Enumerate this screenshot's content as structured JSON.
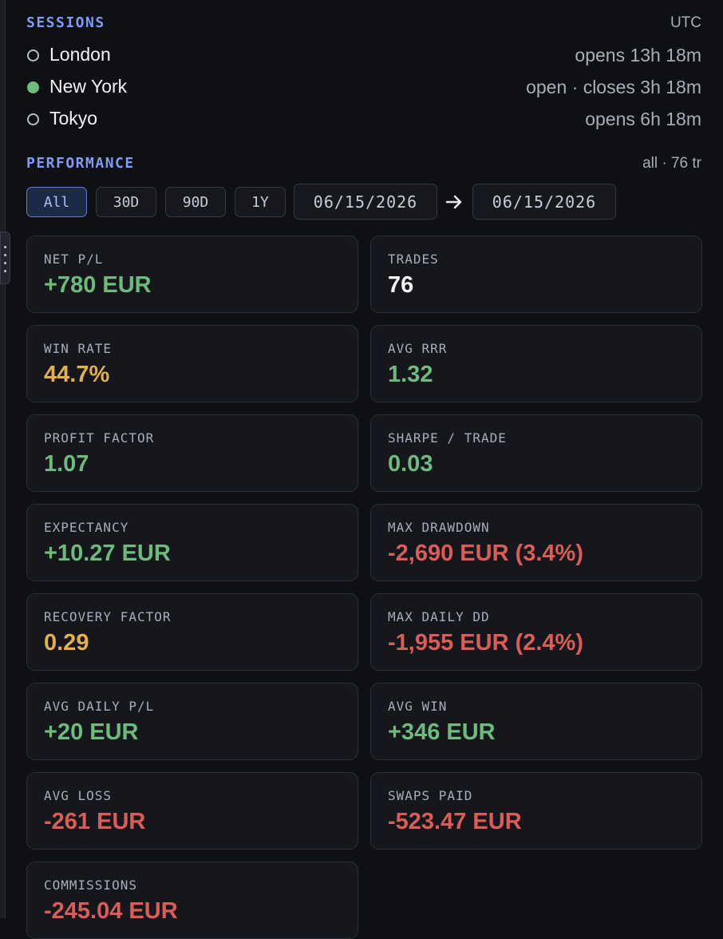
{
  "sessions": {
    "title": "SESSIONS",
    "timezone": "UTC",
    "items": [
      {
        "name": "London",
        "status": "opens 13h 18m",
        "open": false
      },
      {
        "name": "New York",
        "status": "open · closes 3h 18m",
        "open": true
      },
      {
        "name": "Tokyo",
        "status": "opens 6h 18m",
        "open": false
      }
    ]
  },
  "performance": {
    "title": "PERFORMANCE",
    "summary": "all · 76 tr",
    "filters": [
      "All",
      "30D",
      "90D",
      "1Y"
    ],
    "active_filter": 0,
    "date_from": "06/15/2026",
    "date_to": "06/15/2026",
    "cards": [
      {
        "label": "NET P/L",
        "value": "+780 EUR",
        "color": "#6dbb7d"
      },
      {
        "label": "TRADES",
        "value": "76",
        "color": "#f2f3f5"
      },
      {
        "label": "WIN RATE",
        "value": "44.7%",
        "color": "#e3b04b"
      },
      {
        "label": "AVG RRR",
        "value": "1.32",
        "color": "#6dbb7d"
      },
      {
        "label": "PROFIT FACTOR",
        "value": "1.07",
        "color": "#6dbb7d"
      },
      {
        "label": "SHARPE / TRADE",
        "value": "0.03",
        "color": "#6dbb7d"
      },
      {
        "label": "EXPECTANCY",
        "value": "+10.27 EUR",
        "color": "#6dbb7d"
      },
      {
        "label": "MAX DRAWDOWN",
        "value": "-2,690 EUR (3.4%)",
        "color": "#dc5c57"
      },
      {
        "label": "RECOVERY FACTOR",
        "value": "0.29",
        "color": "#e3b04b"
      },
      {
        "label": "MAX DAILY DD",
        "value": "-1,955 EUR (2.4%)",
        "color": "#dc5c57"
      },
      {
        "label": "AVG DAILY P/L",
        "value": "+20 EUR",
        "color": "#6dbb7d"
      },
      {
        "label": "AVG WIN",
        "value": "+346 EUR",
        "color": "#6dbb7d"
      },
      {
        "label": "AVG LOSS",
        "value": "-261 EUR",
        "color": "#dc5c57"
      },
      {
        "label": "SWAPS PAID",
        "value": "-523.47 EUR",
        "color": "#dc5c57"
      },
      {
        "label": "COMMISSIONS",
        "value": "-245.04 EUR",
        "color": "#dc5c57"
      }
    ]
  }
}
